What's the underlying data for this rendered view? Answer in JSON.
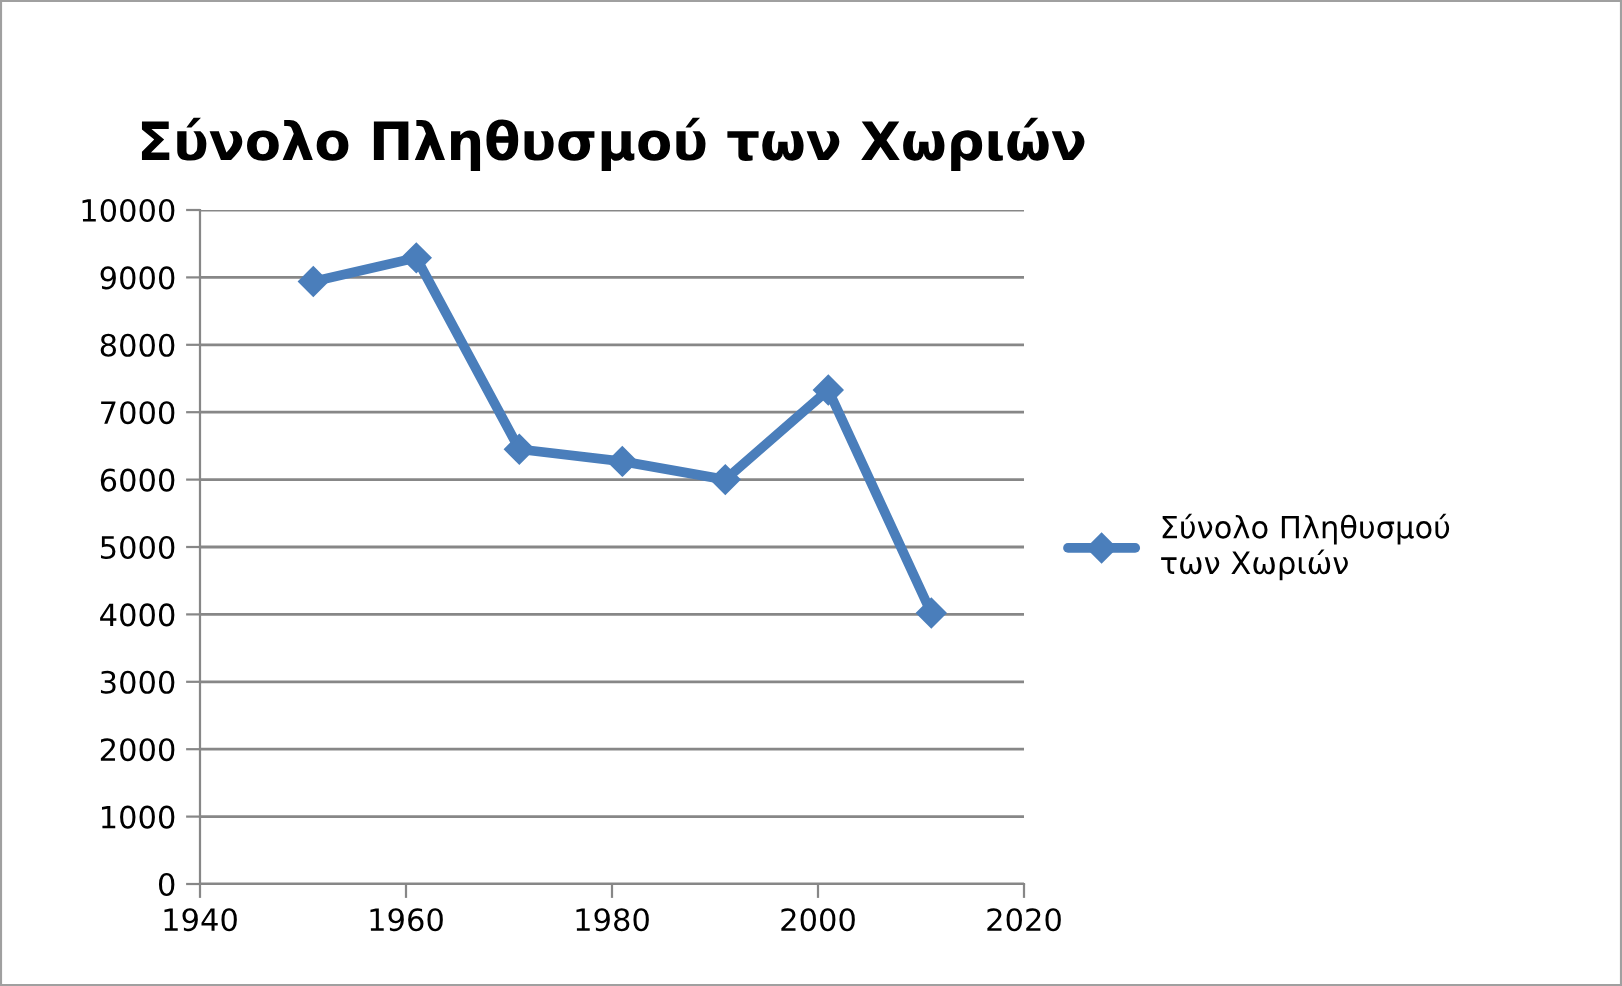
{
  "chart_data": {
    "type": "line",
    "title": "Σύνολο Πληθυσμού των Χωριών",
    "x": [
      1951,
      1961,
      1971,
      1981,
      1991,
      2001,
      2011
    ],
    "series": [
      {
        "name": "Σύνολο Πληθυσμού\nτων Χωριών",
        "color": "#4a7ebb",
        "values": [
          8940,
          9290,
          6450,
          6270,
          6000,
          7330,
          4020
        ]
      }
    ],
    "xlim": [
      1940,
      2020
    ],
    "xticks": [
      1940,
      1960,
      1980,
      2000,
      2020
    ],
    "ylim": [
      0,
      10000
    ],
    "yticks": [
      0,
      1000,
      2000,
      3000,
      4000,
      5000,
      6000,
      7000,
      8000,
      9000,
      10000
    ],
    "grid": "y",
    "legend": "right",
    "marker": "diamond",
    "line_style": "solid"
  }
}
